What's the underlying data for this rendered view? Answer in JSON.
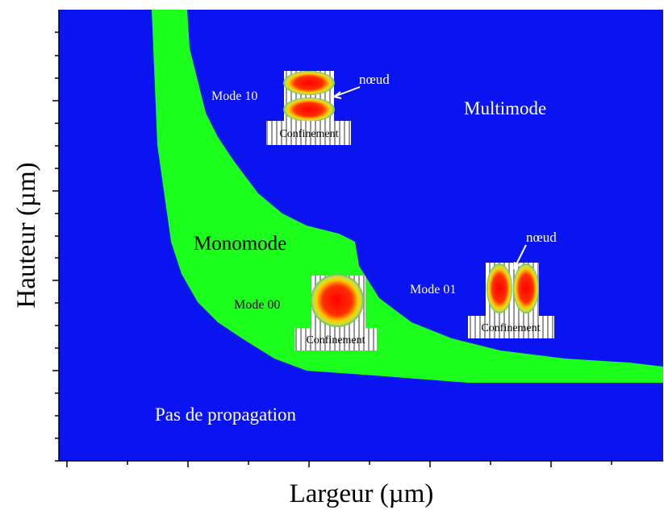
{
  "axes": {
    "x_label": "Largeur (µm)",
    "y_label": "Hauteur (µm)"
  },
  "regions": {
    "multimode": "Multimode",
    "monomode": "Monomode",
    "none": "Pas de propagation"
  },
  "modes": [
    {
      "label": "Mode 10",
      "node": "nœud",
      "confinement": "Confinement"
    },
    {
      "label": "Mode 00",
      "confinement": "Confinement"
    },
    {
      "label": "Mode 01",
      "node": "nœud",
      "confinement": "Confinement"
    }
  ]
}
